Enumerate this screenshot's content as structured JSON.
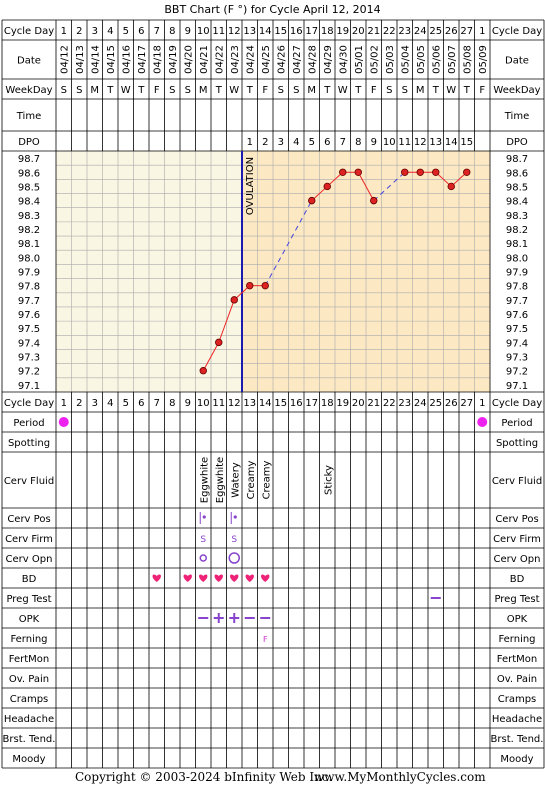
{
  "title": "BBT Chart (F °) for Cycle April 12, 2014",
  "footer": {
    "copyright": "Copyright © 2003-2024 bInfinity Web Inc.",
    "site": "www.MyMonthlyCycles.com"
  },
  "row_labels": {
    "cycle_day": "Cycle Day",
    "date": "Date",
    "weekday": "WeekDay",
    "time": "Time",
    "dpo": "DPO",
    "period": "Period",
    "spotting": "Spotting",
    "cerv_fluid": "Cerv Fluid",
    "cerv_pos": "Cerv Pos",
    "cerv_firm": "Cerv Firm",
    "cerv_opn": "Cerv Opn",
    "bd": "BD",
    "preg_test": "Preg Test",
    "opk": "OPK",
    "ferning": "Ferning",
    "fertmon": "FertMon",
    "ov_pain": "Ov. Pain",
    "cramps": "Cramps",
    "headache": "Headache",
    "brst_tend": "Brst. Tend.",
    "moody": "Moody"
  },
  "ovulation_label": "OVULATION",
  "colors": {
    "pre_ov_fill": "#faf6e4",
    "post_ov_fill": "#fce9c4",
    "grid": "#aaaaaa",
    "temp_line": "#ee2222",
    "temp_dot": "#dd2222",
    "missing_line": "#4444dd",
    "coverline": "#1a1ab0",
    "period": "#ee22ee",
    "bd_heart": "#ee2277",
    "purple": "#8844cc",
    "ferning": "#cc33cc"
  },
  "chart_data": {
    "type": "line",
    "cycle_days": [
      "1",
      "2",
      "3",
      "4",
      "5",
      "6",
      "7",
      "8",
      "9",
      "10",
      "11",
      "12",
      "13",
      "14",
      "15",
      "16",
      "17",
      "18",
      "19",
      "20",
      "21",
      "22",
      "23",
      "24",
      "25",
      "26",
      "27",
      "1"
    ],
    "dates": [
      "04/12",
      "04/13",
      "04/14",
      "04/15",
      "04/16",
      "04/17",
      "04/18",
      "04/19",
      "04/20",
      "04/21",
      "04/22",
      "04/23",
      "04/24",
      "04/25",
      "04/26",
      "04/27",
      "04/28",
      "04/29",
      "04/30",
      "05/01",
      "05/02",
      "05/03",
      "05/04",
      "05/05",
      "05/06",
      "05/07",
      "05/08",
      "05/09"
    ],
    "weekdays": [
      "S",
      "S",
      "M",
      "T",
      "W",
      "T",
      "F",
      "S",
      "S",
      "M",
      "T",
      "W",
      "T",
      "F",
      "S",
      "S",
      "M",
      "T",
      "W",
      "T",
      "F",
      "S",
      "S",
      "M",
      "T",
      "W",
      "T",
      "F"
    ],
    "dpo": [
      "",
      "",
      "",
      "",
      "",
      "",
      "",
      "",
      "",
      "",
      "",
      "",
      "1",
      "2",
      "3",
      "4",
      "5",
      "6",
      "7",
      "8",
      "9",
      "10",
      "11",
      "12",
      "13",
      "14",
      "15",
      ""
    ],
    "y_ticks": [
      "98.7",
      "98.6",
      "98.5",
      "98.4",
      "98.3",
      "98.2",
      "98.1",
      "98.0",
      "97.9",
      "97.8",
      "97.7",
      "97.6",
      "97.5",
      "97.4",
      "97.3",
      "97.2",
      "97.1"
    ],
    "ylim": [
      97.1,
      98.7
    ],
    "temperatures": [
      null,
      null,
      null,
      null,
      null,
      null,
      null,
      null,
      null,
      97.2,
      97.4,
      97.7,
      97.8,
      97.8,
      null,
      null,
      98.4,
      98.5,
      98.6,
      98.6,
      98.4,
      null,
      98.6,
      98.6,
      98.6,
      98.5,
      98.6,
      null
    ],
    "ovulation_day_index": 11,
    "period": [
      true,
      false,
      false,
      false,
      false,
      false,
      false,
      false,
      false,
      false,
      false,
      false,
      false,
      false,
      false,
      false,
      false,
      false,
      false,
      false,
      false,
      false,
      false,
      false,
      false,
      false,
      false,
      true
    ],
    "cerv_fluid": [
      {
        "day_index": 9,
        "text": "Eggwhite"
      },
      {
        "day_index": 10,
        "text": "Eggwhite"
      },
      {
        "day_index": 11,
        "text": "Watery"
      },
      {
        "day_index": 12,
        "text": "Creamy"
      },
      {
        "day_index": 13,
        "text": "Creamy"
      },
      {
        "day_index": 17,
        "text": "Sticky"
      }
    ],
    "cerv_pos_days": [
      9,
      11
    ],
    "cerv_firm": [
      {
        "day_index": 9,
        "text": "S"
      },
      {
        "day_index": 11,
        "text": "S"
      }
    ],
    "cerv_opn": [
      {
        "day_index": 9,
        "size": "small"
      },
      {
        "day_index": 11,
        "size": "large"
      }
    ],
    "bd_days": [
      6,
      8,
      9,
      10,
      11,
      12,
      13
    ],
    "preg_test": [
      {
        "day_index": 24,
        "result": "negative"
      }
    ],
    "opk": [
      {
        "day_index": 9,
        "result": "negative"
      },
      {
        "day_index": 10,
        "result": "positive"
      },
      {
        "day_index": 11,
        "result": "positive"
      },
      {
        "day_index": 12,
        "result": "negative"
      },
      {
        "day_index": 13,
        "result": "negative"
      }
    ],
    "ferning": [
      {
        "day_index": 13,
        "text": "F"
      }
    ]
  }
}
